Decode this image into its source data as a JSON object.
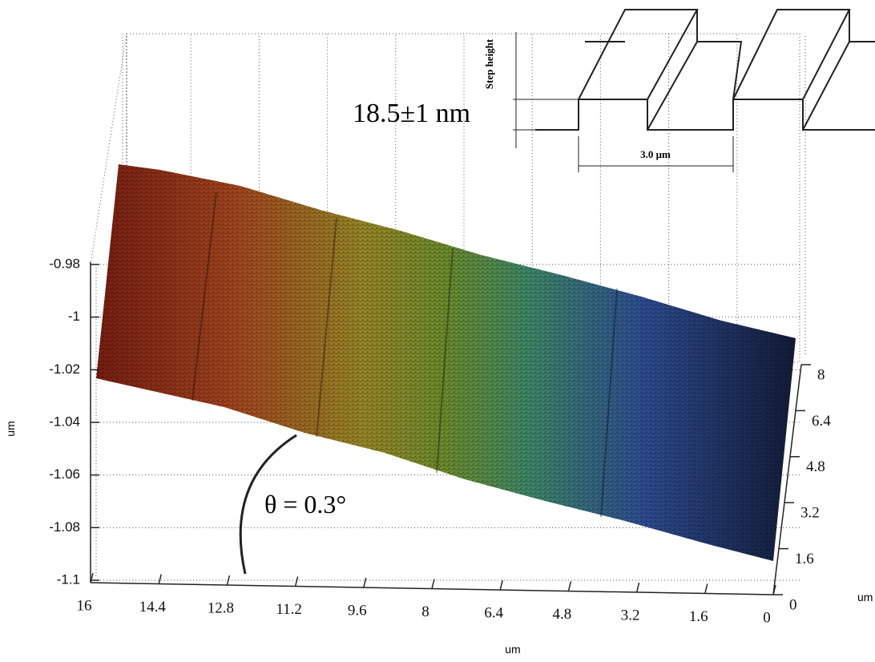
{
  "chart_data": {
    "type": "surface3d",
    "xlabel": "um",
    "ylabel": "um",
    "zlabel": "um",
    "xlim": [
      16,
      0
    ],
    "xticks": [
      16,
      14.4,
      12.8,
      11.2,
      9.6,
      8,
      6.4,
      4.8,
      3.2,
      1.6,
      0
    ],
    "ylim": [
      0,
      8
    ],
    "yticks": [
      0,
      1.6,
      3.2,
      4.8,
      6.4,
      8
    ],
    "zlim": [
      -1.1,
      -0.98
    ],
    "zticks": [
      -0.98,
      -1,
      -1.02,
      -1.04,
      -1.06,
      -1.08,
      -1.1
    ],
    "grid": true,
    "annotation": "θ = 0.3°",
    "inset": {
      "step_label": "Step height",
      "step_value": "18.5±1 nm",
      "period": "3.0 μm"
    }
  }
}
